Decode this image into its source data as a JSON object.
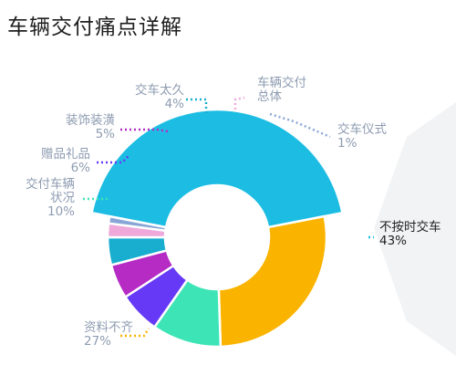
{
  "header": {
    "title": "车辆交付痛点详解"
  },
  "chart_data": {
    "type": "pie",
    "variant": "donut",
    "title": "车辆交付痛点详解",
    "highlighted": "不按时交车",
    "slices": [
      {
        "label": "不按时交车",
        "value": 43,
        "display": "43%",
        "color": "#1dbde3"
      },
      {
        "label": "资料不齐",
        "value": 27,
        "display": "27%",
        "color": "#fab400"
      },
      {
        "label": "交付车辆状况",
        "value": 10,
        "display": "10%",
        "color": "#3de4b6"
      },
      {
        "label": "赠品礼品",
        "value": 6,
        "display": "6%",
        "color": "#6639f6"
      },
      {
        "label": "装饰装潢",
        "value": 5,
        "display": "5%",
        "color": "#b52bc4"
      },
      {
        "label": "交车太久",
        "value": 4,
        "display": "4%",
        "color": "#19aecf"
      },
      {
        "label": "车辆交付总体",
        "value": 2,
        "display": "",
        "color": "#eea9da"
      },
      {
        "label": "交车仪式",
        "value": 1,
        "display": "1%",
        "color": "#89a7d6"
      }
    ]
  }
}
